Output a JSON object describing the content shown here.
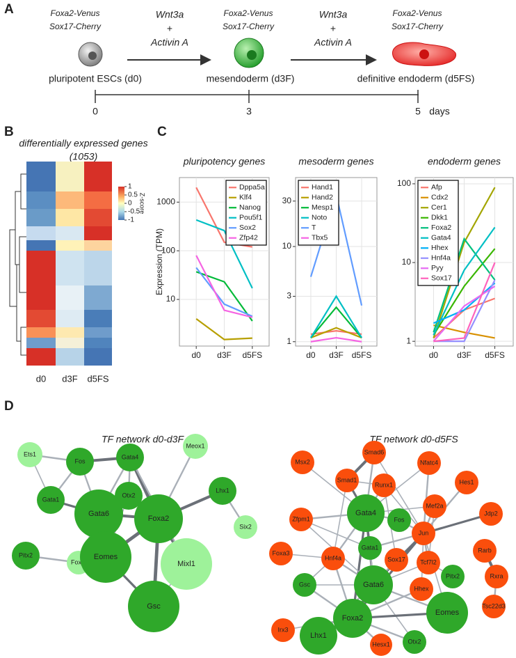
{
  "panel_labels": [
    "A",
    "B",
    "C",
    "D"
  ],
  "scheme": {
    "stages": [
      {
        "reporters": [
          {
            "text": "Foxa2-Venus",
            "color": "#333333"
          },
          {
            "text": "Sox17-Cherry",
            "color": "#333333"
          }
        ],
        "label": "pluripotent ESCs (d0)"
      },
      {
        "reporters": [
          {
            "text": "Foxa2-Venus",
            "color": "#2e9e3a"
          },
          {
            "text": "Sox17-Cherry",
            "color": "#333333"
          }
        ],
        "label": "mesendoderm (d3F)"
      },
      {
        "reporters": [
          {
            "text": "Foxa2-Venus",
            "color": "#2e9e3a"
          },
          {
            "text": "Sox17-Cherry",
            "color": "#e8262b"
          }
        ],
        "label": "definitive endoderm (d5FS)"
      }
    ],
    "treatments": [
      {
        "lines": [
          "Wnt3a",
          "+",
          "Activin A"
        ]
      },
      {
        "lines": [
          "Wnt3a",
          "+",
          "Activin A"
        ]
      }
    ],
    "timeline": {
      "ticks": [
        0,
        3,
        5
      ],
      "unit": "days"
    }
  },
  "heatmap": {
    "title": "differentially expressed genes",
    "count": "(1053)",
    "columns": [
      "d0",
      "d3F",
      "d5FS"
    ],
    "colorbar_label": "Z-score",
    "colorbar_ticks": [
      1,
      0.5,
      0,
      -0.5,
      -1
    ]
  },
  "chart_data": [
    {
      "type": "line",
      "title": "pluripotency genes",
      "y_label": "Expression (TPM)",
      "categories": [
        "d0",
        "d3F",
        "d5FS"
      ],
      "log_scale": true,
      "grid": true,
      "legend": "top-right",
      "ylim": [
        1.1,
        3200
      ],
      "yticks": [
        10,
        100,
        1000
      ],
      "series": [
        {
          "name": "Dppa5a",
          "color": "#F8766D",
          "values": [
            2000,
            150,
            120
          ]
        },
        {
          "name": "Klf4",
          "color": "#B79F00",
          "values": [
            4,
            1.5,
            1.6
          ]
        },
        {
          "name": "Nanog",
          "color": "#00BA38",
          "values": [
            37,
            23,
            3.6
          ]
        },
        {
          "name": "Pou5f1",
          "color": "#00BFC4",
          "values": [
            430,
            260,
            17
          ]
        },
        {
          "name": "Sox2",
          "color": "#619CFF",
          "values": [
            45,
            8,
            4.5
          ]
        },
        {
          "name": "Zfp42",
          "color": "#F564E3",
          "values": [
            80,
            6,
            4.3
          ]
        }
      ]
    },
    {
      "type": "line",
      "title": "mesoderm genes",
      "categories": [
        "d0",
        "d3F",
        "d5FS"
      ],
      "log_scale": true,
      "grid": true,
      "legend": "top-left",
      "ylim": [
        0.9,
        53
      ],
      "yticks": [
        1,
        3,
        10,
        30
      ],
      "series": [
        {
          "name": "Hand1",
          "color": "#F8766D",
          "values": [
            1.2,
            1.3,
            1.2
          ]
        },
        {
          "name": "Hand2",
          "color": "#B79F00",
          "values": [
            1.1,
            1.4,
            1.1
          ]
        },
        {
          "name": "Mesp1",
          "color": "#00BA38",
          "values": [
            1.1,
            2.3,
            1.1
          ]
        },
        {
          "name": "Noto",
          "color": "#00BFC4",
          "values": [
            1.1,
            3,
            1.1
          ]
        },
        {
          "name": "T",
          "color": "#619CFF",
          "values": [
            4.8,
            35,
            2.4
          ]
        },
        {
          "name": "Tbx5",
          "color": "#F564E3",
          "values": [
            1,
            1.1,
            1
          ]
        }
      ]
    },
    {
      "type": "line",
      "title": "endoderm genes",
      "categories": [
        "d0",
        "d3F",
        "d5FS"
      ],
      "log_scale": true,
      "grid": true,
      "legend": "top-left",
      "ylim": [
        0.87,
        120
      ],
      "yticks": [
        1,
        10,
        100
      ],
      "series": [
        {
          "name": "Afp",
          "color": "#F8766D",
          "values": [
            1.1,
            2.5,
            3.5
          ]
        },
        {
          "name": "Cdx2",
          "color": "#D89000",
          "values": [
            1.6,
            1.3,
            1.1
          ]
        },
        {
          "name": "Cer1",
          "color": "#A3A500",
          "values": [
            1.1,
            18,
            90
          ]
        },
        {
          "name": "Dkk1",
          "color": "#39B600",
          "values": [
            1.2,
            5,
            15
          ]
        },
        {
          "name": "Foxa2",
          "color": "#00BF7D",
          "values": [
            1.3,
            20,
            6
          ]
        },
        {
          "name": "Gata4",
          "color": "#00BFC4",
          "values": [
            1.2,
            8,
            28
          ]
        },
        {
          "name": "Hhex",
          "color": "#00B0F6",
          "values": [
            1.7,
            2.5,
            5.5
          ]
        },
        {
          "name": "Hnf4a",
          "color": "#9590FF",
          "values": [
            1,
            1,
            6
          ]
        },
        {
          "name": "Pyy",
          "color": "#E76BF3",
          "values": [
            1,
            2.8,
            5
          ]
        },
        {
          "name": "Sox17",
          "color": "#FF62BC",
          "values": [
            1,
            1.1,
            10
          ]
        }
      ]
    }
  ],
  "networks": [
    {
      "title": "TF network d0-d3F",
      "nodes": [
        {
          "label": "Ets1",
          "color": "#9ef29a"
        },
        {
          "label": "Fos",
          "color": "#2fa82a"
        },
        {
          "label": "Gata4",
          "color": "#2fa82a"
        },
        {
          "label": "Meox1",
          "color": "#9ef29a"
        },
        {
          "label": "Gata1",
          "color": "#2fa82a"
        },
        {
          "label": "Otx2",
          "color": "#2fa82a"
        },
        {
          "label": "Gata6",
          "color": "#2fa82a"
        },
        {
          "label": "Foxa2",
          "color": "#2fa82a"
        },
        {
          "label": "Lhx1",
          "color": "#2fa82a"
        },
        {
          "label": "Pitx2",
          "color": "#2fa82a"
        },
        {
          "label": "Foxj1",
          "color": "#9ef29a"
        },
        {
          "label": "Eomes",
          "color": "#2fa82a"
        },
        {
          "label": "Mixl1",
          "color": "#9ef29a"
        },
        {
          "label": "Six2",
          "color": "#9ef29a"
        },
        {
          "label": "Gsc",
          "color": "#2fa82a"
        }
      ]
    },
    {
      "title": "TF network d0-d5FS",
      "nodes": [
        {
          "label": "Msx2",
          "color": "#fa4e0c"
        },
        {
          "label": "Smad6",
          "color": "#fa4e0c"
        },
        {
          "label": "Nfatc4",
          "color": "#fa4e0c"
        },
        {
          "label": "Smad1",
          "color": "#fa4e0c"
        },
        {
          "label": "Runx1",
          "color": "#fa4e0c"
        },
        {
          "label": "Hes1",
          "color": "#fa4e0c"
        },
        {
          "label": "Jdp2",
          "color": "#fa4e0c"
        },
        {
          "label": "Mef2a",
          "color": "#fa4e0c"
        },
        {
          "label": "Fos",
          "color": "#2fa82a"
        },
        {
          "label": "Gata4",
          "color": "#2fa82a"
        },
        {
          "label": "Zfpm1",
          "color": "#fa4e0c"
        },
        {
          "label": "Jun",
          "color": "#fa4e0c"
        },
        {
          "label": "Rarb",
          "color": "#fa4e0c"
        },
        {
          "label": "Gata1",
          "color": "#2fa82a"
        },
        {
          "label": "Foxa3",
          "color": "#fa4e0c"
        },
        {
          "label": "Hnf4a",
          "color": "#fa4e0c"
        },
        {
          "label": "Sox17",
          "color": "#fa4e0c"
        },
        {
          "label": "Tcf7l2",
          "color": "#fa4e0c"
        },
        {
          "label": "Pitx2",
          "color": "#2fa82a"
        },
        {
          "label": "Rxra",
          "color": "#fa4e0c"
        },
        {
          "label": "Gsc",
          "color": "#2fa82a"
        },
        {
          "label": "Gata6",
          "color": "#2fa82a"
        },
        {
          "label": "Hhex",
          "color": "#fa4e0c"
        },
        {
          "label": "Tsc22d3",
          "color": "#fa4e0c"
        },
        {
          "label": "Irx3",
          "color": "#fa4e0c"
        },
        {
          "label": "Eomes",
          "color": "#2fa82a"
        },
        {
          "label": "Foxa2",
          "color": "#2fa82a"
        },
        {
          "label": "Lhx1",
          "color": "#2fa82a"
        },
        {
          "label": "Hesx1",
          "color": "#fa4e0c"
        },
        {
          "label": "Otx2",
          "color": "#2fa82a"
        }
      ]
    }
  ]
}
